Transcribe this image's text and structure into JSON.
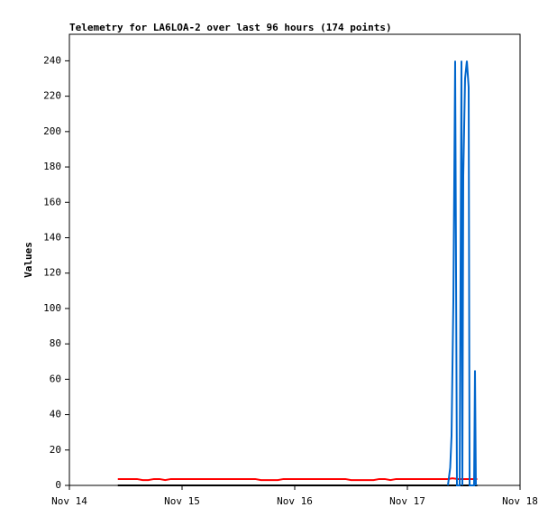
{
  "chart_data": {
    "type": "line",
    "title": "Telemetry for LA6LOA-2 over last 96 hours (174 points)",
    "ylabel": "Values",
    "xlim": [
      0,
      4
    ],
    "xticks": [
      {
        "value": 0,
        "label": "Nov 14"
      },
      {
        "value": 1,
        "label": "Nov 15"
      },
      {
        "value": 2,
        "label": "Nov 16"
      },
      {
        "value": 3,
        "label": "Nov 17"
      },
      {
        "value": 4,
        "label": "Nov 18"
      }
    ],
    "ylim": [
      0,
      255
    ],
    "yticks": [
      0,
      20,
      40,
      60,
      80,
      100,
      120,
      140,
      160,
      180,
      200,
      220,
      240
    ],
    "grid": false,
    "series": [
      {
        "color": "#000000",
        "x": [
          0.43,
          3.62
        ],
        "values": [
          0,
          0
        ]
      },
      {
        "color": "#ff0000",
        "x": [
          0.43,
          0.6,
          0.65,
          0.7,
          0.75,
          0.8,
          0.85,
          0.9,
          1.0,
          1.65,
          1.7,
          1.85,
          1.9,
          2.45,
          2.5,
          2.7,
          2.75,
          2.8,
          2.85,
          2.9,
          3.36,
          3.4,
          3.45,
          3.62
        ],
        "values": [
          3.6,
          3.6,
          3,
          3,
          3.6,
          3.6,
          3,
          3.6,
          3.6,
          3.6,
          3,
          3,
          3.6,
          3.6,
          3,
          3,
          3.6,
          3.6,
          3,
          3.6,
          3.6,
          4,
          3.6,
          3.6
        ]
      },
      {
        "color": "#0066cc",
        "x": [
          3.36,
          3.38,
          3.392,
          3.408,
          3.424,
          3.44,
          3.464,
          3.48,
          3.488,
          3.496,
          3.512,
          3.528,
          3.544,
          3.552,
          3.592,
          3.6,
          3.608
        ],
        "values": [
          0,
          10,
          28,
          104,
          240,
          0,
          0,
          240,
          0,
          175,
          230,
          240,
          225,
          0,
          0,
          65,
          0
        ]
      }
    ]
  }
}
